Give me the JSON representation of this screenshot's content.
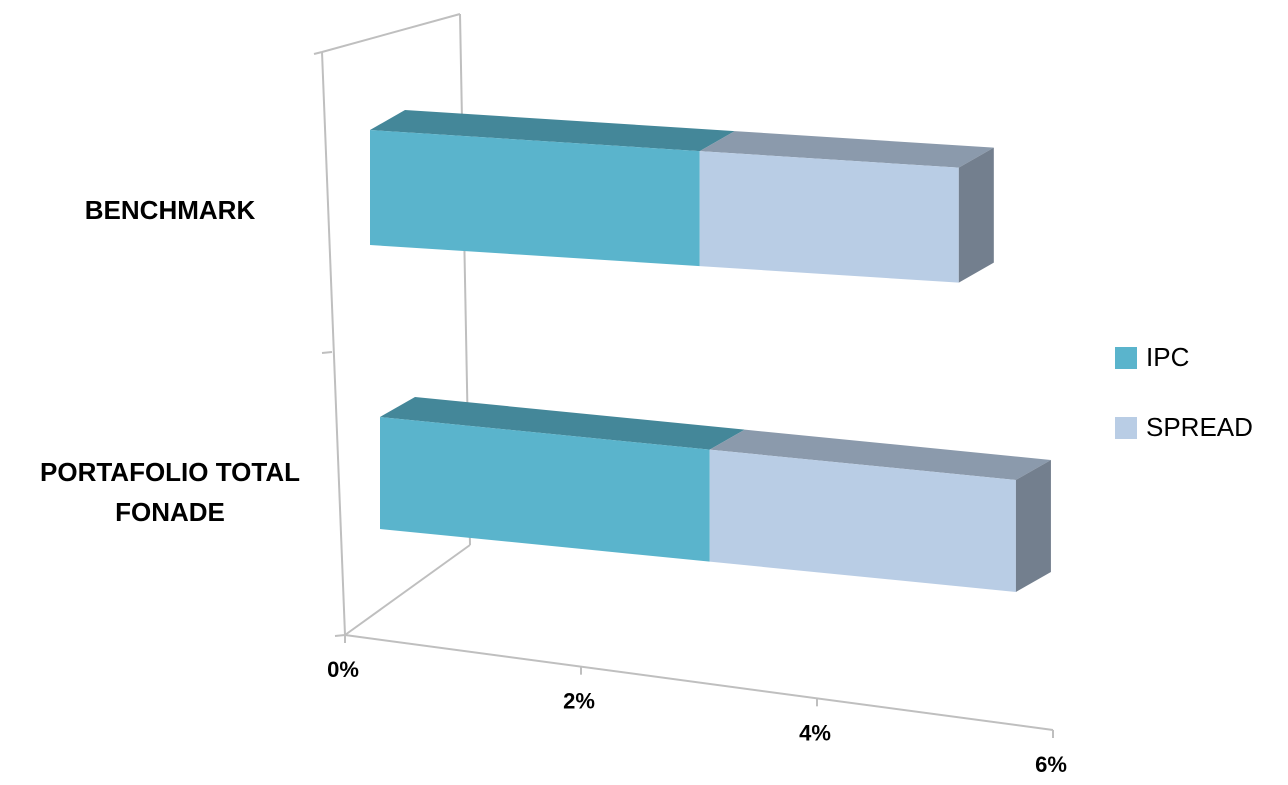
{
  "chart_data": {
    "type": "bar3d-stacked-horizontal",
    "categories": [
      "BENCHMARK",
      "PORTAFOLIO TOTAL FONADE"
    ],
    "series": [
      {
        "name": "IPC",
        "color": "#5ab4cc",
        "values": [
          2.8,
          2.8
        ]
      },
      {
        "name": "SPREAD",
        "color": "#b9cde5",
        "values": [
          2.2,
          2.6
        ]
      }
    ],
    "xlim": [
      0,
      6
    ],
    "xticks": [
      {
        "value": 0,
        "label": "0%"
      },
      {
        "value": 2,
        "label": "2%"
      },
      {
        "value": 4,
        "label": "4%"
      },
      {
        "value": 6,
        "label": "6%"
      }
    ],
    "legend": "right"
  }
}
